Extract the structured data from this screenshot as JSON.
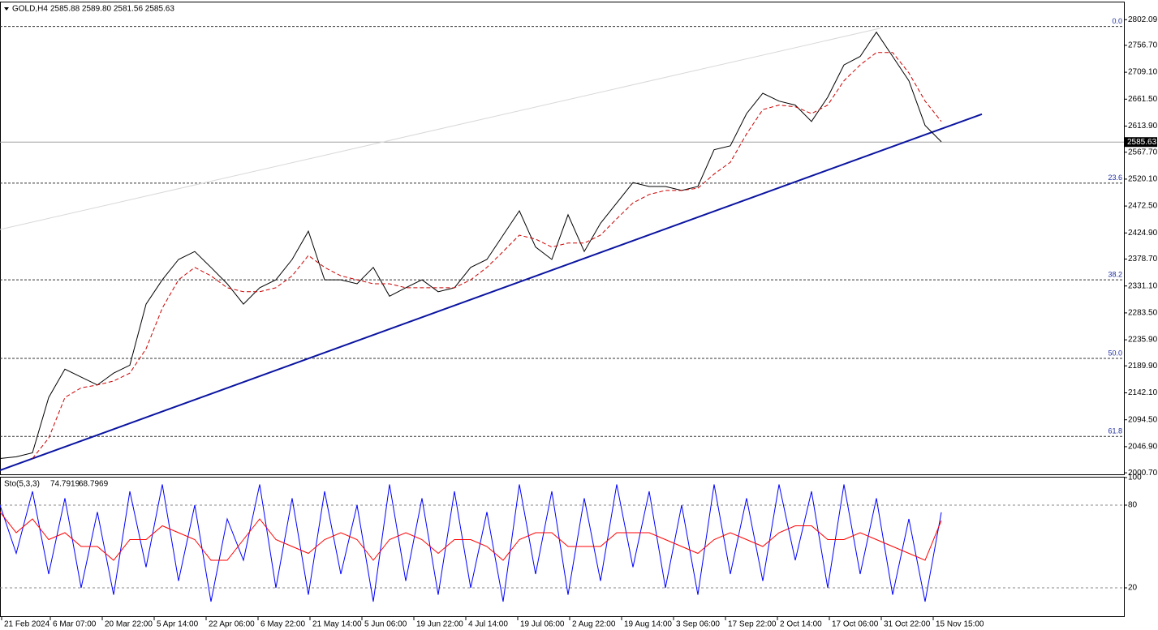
{
  "chart_data": [
    {
      "type": "line",
      "title": "GOLD,H4",
      "subtitle": "2585.88 2589.80 2581.56 2585.63",
      "x": [
        0,
        20,
        40,
        60,
        80,
        100,
        120,
        140,
        160,
        180,
        200,
        220,
        240,
        260,
        280,
        300,
        320,
        340,
        360,
        380,
        400,
        420,
        440,
        460,
        480,
        500,
        520,
        540,
        560,
        580,
        600,
        620,
        640,
        660,
        680,
        700,
        720,
        740,
        760,
        780,
        800,
        820,
        840,
        860,
        880,
        900,
        920,
        940,
        960,
        980,
        1000,
        1020,
        1040,
        1060,
        1080,
        1100,
        1120,
        1140,
        1160
      ],
      "series": [
        {
          "color": "#000000",
          "values": [
            2026,
            2029,
            2036,
            2134,
            2184,
            2170,
            2156,
            2177,
            2191,
            2299,
            2342,
            2378,
            2392,
            2364,
            2335,
            2299,
            2328,
            2342,
            2378,
            2428,
            2342,
            2342,
            2335,
            2364,
            2313,
            2328,
            2342,
            2321,
            2328,
            2364,
            2378,
            2421,
            2464,
            2400,
            2378,
            2457,
            2392,
            2442,
            2478,
            2514,
            2507,
            2507,
            2500,
            2507,
            2572,
            2579,
            2636,
            2672,
            2658,
            2651,
            2622,
            2665,
            2722,
            2737,
            2780,
            2737,
            2694,
            2615,
            2586
          ]
        },
        {
          "color": "#cc0000",
          "dashed": true,
          "values": [
            null,
            null,
            2026,
            2062,
            2134,
            2151,
            2156,
            2163,
            2177,
            2220,
            2292,
            2342,
            2364,
            2349,
            2328,
            2321,
            2321,
            2328,
            2349,
            2385,
            2364,
            2349,
            2342,
            2335,
            2335,
            2328,
            2328,
            2328,
            2328,
            2342,
            2364,
            2392,
            2421,
            2414,
            2400,
            2407,
            2407,
            2421,
            2450,
            2478,
            2493,
            2500,
            2500,
            2504,
            2529,
            2550,
            2600,
            2643,
            2651,
            2648,
            2636,
            2651,
            2694,
            2722,
            2744,
            2744,
            2708,
            2658,
            2622
          ]
        }
      ],
      "xlim": [
        0,
        1385
      ],
      "ylim": [
        1998,
        2834
      ],
      "yticks": [
        2802.09,
        {
          "value": 2756.7,
          "label": "2756.70"
        },
        {
          "value": 2709.1,
          "label": "2709.10"
        },
        {
          "value": 2661.5,
          "label": "2661.50"
        },
        {
          "value": 2613.9,
          "label": "2613.90"
        },
        {
          "value": 2567.7,
          "label": "2567.70"
        },
        {
          "value": 2520.1,
          "label": "2520.10"
        },
        {
          "value": 2472.5,
          "label": "2472.50"
        },
        {
          "value": 2424.9,
          "label": "2424.90"
        },
        {
          "value": 2378.7,
          "label": "2378.70"
        },
        {
          "value": 2331.1,
          "label": "2331.10"
        },
        {
          "value": 2283.5,
          "label": "2283.50"
        },
        {
          "value": 2235.9,
          "label": "2235.90"
        },
        {
          "value": 2189.9,
          "label": "2189.90"
        },
        {
          "value": 2142.1,
          "label": "2142.10"
        },
        {
          "value": 2094.5,
          "label": "2094.50"
        },
        {
          "value": 2046.9,
          "label": "2046.90"
        },
        {
          "value": 2000.7,
          "label": "2000.70"
        }
      ],
      "last_price": 2585.63,
      "fib_levels": [
        {
          "value": 2790,
          "label": "0.0"
        },
        {
          "value": 2513,
          "label": "23.6"
        },
        {
          "value": 2342,
          "label": "38.2"
        },
        {
          "value": 2203,
          "label": "50.0"
        },
        {
          "value": 2065,
          "label": "61.8"
        }
      ],
      "trendlines": [
        {
          "color": "#0a14a0",
          "x": [
            0,
            1210
          ],
          "values": [
            2005,
            2635
          ]
        },
        {
          "color": "#d8d8d8",
          "x": [
            0,
            1085
          ],
          "values": [
            2431,
            2787
          ]
        }
      ]
    },
    {
      "type": "line",
      "title": "Sto(5,3,3)",
      "readings": [
        74.7919,
        68.7969
      ],
      "x": [
        0,
        20,
        40,
        60,
        80,
        100,
        120,
        140,
        160,
        180,
        200,
        220,
        240,
        260,
        280,
        300,
        320,
        340,
        360,
        380,
        400,
        420,
        440,
        460,
        480,
        500,
        520,
        540,
        560,
        580,
        600,
        620,
        640,
        660,
        680,
        700,
        720,
        740,
        760,
        780,
        800,
        820,
        840,
        860,
        880,
        900,
        920,
        940,
        960,
        980,
        1000,
        1020,
        1040,
        1060,
        1080,
        1100,
        1120,
        1140,
        1160
      ],
      "series": [
        {
          "color": "#0000ff",
          "values": [
            80,
            45,
            90,
            30,
            85,
            20,
            75,
            15,
            90,
            35,
            95,
            25,
            80,
            10,
            70,
            40,
            95,
            20,
            85,
            15,
            90,
            30,
            80,
            10,
            95,
            25,
            85,
            15,
            90,
            20,
            75,
            10,
            95,
            30,
            90,
            15,
            85,
            25,
            95,
            35,
            90,
            20,
            80,
            15,
            95,
            30,
            85,
            25,
            95,
            40,
            90,
            20,
            95,
            30,
            85,
            15,
            70,
            10,
            74.79
          ]
        },
        {
          "color": "#ff0000",
          "values": [
            75,
            60,
            70,
            55,
            60,
            50,
            50,
            40,
            55,
            55,
            65,
            60,
            55,
            40,
            40,
            55,
            70,
            55,
            50,
            45,
            55,
            60,
            55,
            40,
            55,
            60,
            55,
            45,
            55,
            55,
            50,
            40,
            55,
            60,
            60,
            50,
            50,
            50,
            60,
            60,
            60,
            55,
            50,
            45,
            55,
            60,
            55,
            50,
            60,
            65,
            65,
            55,
            55,
            60,
            55,
            50,
            45,
            40,
            68.8
          ]
        }
      ],
      "xlim": [
        0,
        1385
      ],
      "ylim": [
        0,
        100
      ],
      "yticks": [
        100,
        80,
        20
      ],
      "levels": [
        80,
        20
      ],
      "xticks": [
        {
          "value": 2,
          "label": "21 Feb 2024"
        },
        {
          "value": 62,
          "label": "6 Mar 07:00"
        },
        {
          "value": 126,
          "label": "20 Mar 22:00"
        },
        {
          "value": 190,
          "label": "5 Apr 14:00"
        },
        {
          "value": 254,
          "label": "22 Apr 06:00"
        },
        {
          "value": 318,
          "label": "6 May 22:00"
        },
        {
          "value": 382,
          "label": "21 May 14:00"
        },
        {
          "value": 446,
          "label": "5 Jun 06:00"
        },
        {
          "value": 510,
          "label": "19 Jun 22:00"
        },
        {
          "value": 574,
          "label": "4 Jul 14:00"
        },
        {
          "value": 638,
          "label": "19 Jul 06:00"
        },
        {
          "value": 702,
          "label": "2 Aug 22:00"
        },
        {
          "value": 766,
          "label": "19 Aug 14:00"
        },
        {
          "value": 830,
          "label": "3 Sep 06:00"
        },
        {
          "value": 894,
          "label": "17 Sep 22:00"
        },
        {
          "value": 958,
          "label": "2 Oct 14:00"
        },
        {
          "value": 1022,
          "label": "17 Oct 06:00"
        },
        {
          "value": 1086,
          "label": "31 Oct 22:00"
        },
        {
          "value": 1150,
          "label": "15 Nov 15:00"
        }
      ]
    }
  ]
}
